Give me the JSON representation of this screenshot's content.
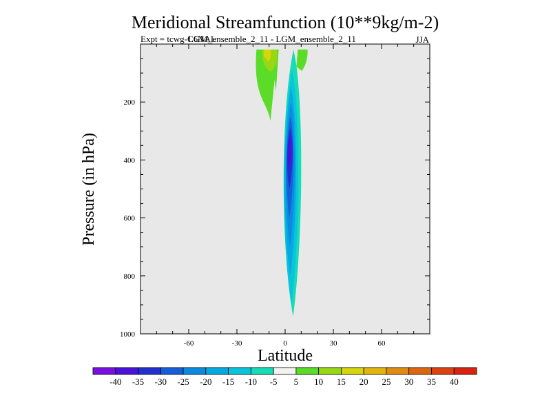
{
  "chart_data": {
    "type": "contour",
    "title": "Meridional Streamfunction (10**9kg/m-2)",
    "subtitle_left": "Expt = tcwg-C6NAL",
    "subtitle_overlap": "LGM_ensemble_2_11 - LGM_ensemble_2_11",
    "season": "JJA",
    "xlabel": "Latitude",
    "ylabel": "Pressure (in hPa)",
    "xlim": [
      -90,
      90
    ],
    "ylim": [
      1000,
      0
    ],
    "xticks": [
      -60,
      -30,
      0,
      30,
      60
    ],
    "yticks": [
      200,
      400,
      600,
      800,
      1000
    ],
    "background_color": "#e8e8e8",
    "colorbar": {
      "labels": [
        "-40",
        "-35",
        "-30",
        "-25",
        "-20",
        "-15",
        "-10",
        "-5",
        "5",
        "10",
        "15",
        "20",
        "25",
        "30",
        "35",
        "40"
      ],
      "colors": [
        "#7a10e0",
        "#4a12d8",
        "#2230d2",
        "#1560d8",
        "#0c8ae0",
        "#06a8e2",
        "#0ac4dc",
        "#16dcb8",
        "#f2f2f2",
        "#5adc28",
        "#98d812",
        "#d6d60c",
        "#e2b40c",
        "#e08c0e",
        "#de660e",
        "#dc4210",
        "#d82410"
      ]
    },
    "features": [
      {
        "name": "negative-cell",
        "center": [
          3,
          380
        ],
        "levels": [
          {
            "value": -5,
            "color": "#16dcb8",
            "lat": [
              -2,
              11
            ],
            "p": [
              20,
              940
            ]
          },
          {
            "value": -10,
            "color": "#0ac4dc",
            "lat": [
              -1.5,
              9
            ],
            "p": [
              90,
              900
            ]
          },
          {
            "value": -15,
            "color": "#06a8e2",
            "lat": [
              -1,
              7.5
            ],
            "p": [
              150,
              800
            ]
          },
          {
            "value": -20,
            "color": "#0c8ae0",
            "lat": [
              0,
              6.5
            ],
            "p": [
              200,
              700
            ]
          },
          {
            "value": -25,
            "color": "#1560d8",
            "lat": [
              0.5,
              5.5
            ],
            "p": [
              250,
              600
            ]
          },
          {
            "value": -30,
            "color": "#2230d2",
            "lat": [
              1,
              5
            ],
            "p": [
              290,
              500
            ]
          },
          {
            "value": -35,
            "color": "#4a12d8",
            "lat": [
              1.5,
              4.2
            ],
            "p": [
              320,
              430
            ]
          }
        ]
      },
      {
        "name": "positive-cell-left",
        "center": [
          -10,
          60
        ],
        "levels": [
          {
            "value": 5,
            "color": "#5adc28",
            "lat": [
              -20,
              -4
            ],
            "p": [
              0,
              265
            ]
          },
          {
            "value": 10,
            "color": "#98d812",
            "lat": [
              -14,
              -5
            ],
            "p": [
              0,
              95
            ]
          },
          {
            "value": 15,
            "color": "#d6d60c",
            "lat": [
              -13,
              -9
            ],
            "p": [
              0,
              60
            ]
          }
        ]
      },
      {
        "name": "positive-cell-right",
        "center": [
          10,
          10
        ],
        "levels": [
          {
            "value": 5,
            "color": "#5adc28",
            "lat": [
              7,
              14
            ],
            "p": [
              0,
              45
            ]
          }
        ]
      }
    ]
  }
}
